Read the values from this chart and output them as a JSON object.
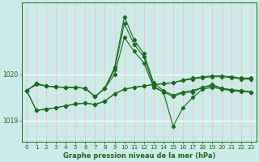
{
  "title": "Graphe pression niveau de la mer (hPa)",
  "bg_color": "#cceae7",
  "grid_color_v": "#f5c0c0",
  "grid_color_h": "#ffffff",
  "line_color": "#1a6b1a",
  "x_ticks": [
    0,
    1,
    2,
    3,
    4,
    5,
    6,
    7,
    8,
    9,
    10,
    11,
    12,
    13,
    14,
    15,
    16,
    17,
    18,
    19,
    20,
    21,
    22,
    23
  ],
  "ylim": [
    1018.55,
    1021.55
  ],
  "yticks": [
    1019.0,
    1020.0
  ],
  "series": [
    [
      1019.65,
      1019.8,
      1019.75,
      1019.73,
      1019.72,
      1019.72,
      1019.7,
      1019.52,
      1019.7,
      1020.15,
      1021.25,
      1020.75,
      1020.45,
      1019.82,
      1019.65,
      1019.55,
      1019.62,
      1019.65,
      1019.72,
      1019.78,
      1019.7,
      1019.67,
      1019.65,
      1019.62
    ],
    [
      1019.65,
      1019.8,
      1019.75,
      1019.73,
      1019.72,
      1019.72,
      1019.7,
      1019.52,
      1019.7,
      1020.1,
      1021.1,
      1020.65,
      1020.38,
      1019.75,
      1019.62,
      1018.88,
      1019.28,
      1019.5,
      1019.68,
      1019.72,
      1019.68,
      1019.65,
      1019.63,
      1019.62
    ],
    [
      1019.65,
      1019.78,
      1019.75,
      1019.73,
      1019.72,
      1019.72,
      1019.7,
      1019.52,
      1019.7,
      1020.0,
      1020.8,
      1020.5,
      1020.25,
      1019.72,
      1019.62,
      1019.52,
      1019.6,
      1019.62,
      1019.72,
      1019.75,
      1019.7,
      1019.65,
      1019.65,
      1019.62
    ],
    [
      1019.65,
      1019.22,
      1019.25,
      1019.28,
      1019.32,
      1019.36,
      1019.38,
      1019.35,
      1019.42,
      1019.58,
      1019.68,
      1019.72,
      1019.75,
      1019.78,
      1019.8,
      1019.82,
      1019.87,
      1019.9,
      1019.93,
      1019.95,
      1019.95,
      1019.93,
      1019.9,
      1019.9
    ],
    [
      1019.65,
      1019.22,
      1019.25,
      1019.28,
      1019.32,
      1019.36,
      1019.38,
      1019.35,
      1019.42,
      1019.58,
      1019.68,
      1019.72,
      1019.75,
      1019.78,
      1019.8,
      1019.82,
      1019.88,
      1019.92,
      1019.95,
      1019.97,
      1019.97,
      1019.95,
      1019.92,
      1019.92
    ]
  ],
  "linewidths": [
    0.8,
    0.8,
    0.8,
    0.8,
    0.8
  ],
  "marker_sizes": [
    2.2,
    2.2,
    2.2,
    2.2,
    2.2
  ],
  "title_fontsize": 6.0,
  "tick_fontsize": 5.2
}
